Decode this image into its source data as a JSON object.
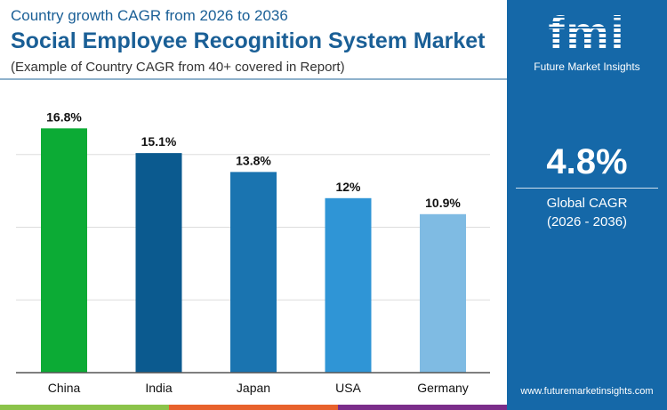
{
  "header": {
    "subtitle": "Country growth CAGR from 2026 to 2036",
    "title": "Social Employee Recognition System Market",
    "note": "(Example of Country CAGR from 40+ covered in Report)"
  },
  "panel": {
    "logo_text": "fmi",
    "logo_sub": "Future Market Insights",
    "cagr_value": "4.8%",
    "cagr_label": "Global CAGR",
    "cagr_period": "(2026 - 2036)",
    "website": "www.futuremarketinsights.com"
  },
  "colors": {
    "stripes": [
      "#8bc34a",
      "#e8622c",
      "#7b2d8a"
    ],
    "panel": "#1568a8"
  },
  "chart_data": {
    "type": "bar",
    "title": "",
    "xlabel": "",
    "ylabel": "",
    "categories": [
      "China",
      "India",
      "Japan",
      "USA",
      "Germany"
    ],
    "values": [
      16.8,
      15.1,
      13.8,
      12,
      10.9
    ],
    "labels": [
      "16.8%",
      "15.1%",
      "13.8%",
      "12%",
      "10.9%"
    ],
    "colors": [
      "#0cab35",
      "#0b5a8f",
      "#1a74b0",
      "#2f95d6",
      "#7fbbe3"
    ],
    "ylim": [
      0,
      15
    ],
    "gridlines": [
      5,
      10,
      15
    ],
    "grid": true
  }
}
